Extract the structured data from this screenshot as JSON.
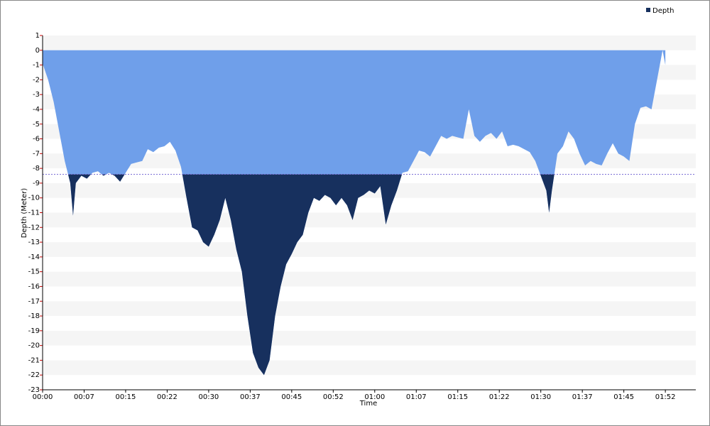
{
  "chart_data": {
    "type": "area",
    "ylabel": "Depth (Meter)",
    "xlabel": "Time",
    "series": [
      {
        "name": "Depth",
        "color": "#6f9fea",
        "deep_color": "#17305e",
        "x": [
          0,
          1,
          2,
          3,
          4,
          5,
          5.5,
          6,
          7,
          8,
          9,
          10,
          11,
          12,
          13,
          14,
          15,
          16,
          17,
          18,
          19,
          20,
          21,
          22,
          23,
          24,
          25,
          26,
          27,
          28,
          29,
          30,
          31,
          32,
          33,
          34,
          35,
          36,
          37,
          38,
          39,
          40,
          41,
          42,
          43,
          44,
          45,
          46,
          47,
          48,
          49,
          50,
          51,
          52,
          53,
          54,
          55,
          56,
          57,
          58,
          59,
          60,
          61,
          62,
          63,
          64,
          65,
          66,
          67,
          68,
          69,
          70,
          71,
          72,
          73,
          74,
          75,
          76,
          77,
          78,
          79,
          80,
          81,
          82,
          83,
          84,
          85,
          86,
          87,
          88,
          89,
          90,
          91,
          91.5,
          92,
          93,
          94,
          95,
          96,
          97,
          98,
          99,
          100,
          101,
          102,
          103,
          104,
          105,
          106,
          107,
          108,
          109,
          110,
          111,
          112,
          112.5
        ],
        "values": [
          -0.9,
          -2,
          -3.5,
          -5.5,
          -7.5,
          -9,
          -11.2,
          -9,
          -8.5,
          -8.7,
          -8.3,
          -8.2,
          -8.5,
          -8.3,
          -8.5,
          -8.9,
          -8.3,
          -7.7,
          -7.6,
          -7.5,
          -6.7,
          -6.9,
          -6.6,
          -6.5,
          -6.2,
          -6.8,
          -7.9,
          -10,
          -12,
          -12.2,
          -13,
          -13.3,
          -12.5,
          -11.5,
          -10,
          -11.5,
          -13.5,
          -15,
          -18,
          -20.5,
          -21.5,
          -22,
          -21,
          -18,
          -16,
          -14.5,
          -13.8,
          -13,
          -12.5,
          -11,
          -10,
          -10.2,
          -9.8,
          -10,
          -10.5,
          -10,
          -10.5,
          -11.5,
          -10,
          -9.8,
          -9.5,
          -9.7,
          -9.2,
          -11.8,
          -10.5,
          -9.5,
          -8.3,
          -8.2,
          -7.5,
          -6.8,
          -6.9,
          -7.2,
          -6.5,
          -5.8,
          -6,
          -5.8,
          -5.9,
          -6,
          -4,
          -5.8,
          -6.2,
          -5.8,
          -5.6,
          -6,
          -5.5,
          -6.5,
          -6.4,
          -6.5,
          -6.7,
          -6.9,
          -7.5,
          -8.5,
          -9.5,
          -11,
          -9.5,
          -7,
          -6.5,
          -5.5,
          -6,
          -7,
          -7.8,
          -7.5,
          -7.7,
          -7.8,
          -7,
          -6.3,
          -7,
          -7.2,
          -7.5,
          -5,
          -3.9,
          -3.8,
          -4,
          -2,
          0,
          -1
        ]
      }
    ],
    "threshold": -8.4,
    "threshold_color": "#7b6fd6",
    "xlim": [
      0,
      118
    ],
    "ylim": [
      -23,
      1
    ],
    "xticks": [
      {
        "value": 0,
        "label": "00:00"
      },
      {
        "value": 7.5,
        "label": "00:07"
      },
      {
        "value": 15,
        "label": "00:15"
      },
      {
        "value": 22.5,
        "label": "00:22"
      },
      {
        "value": 30,
        "label": "00:30"
      },
      {
        "value": 37.5,
        "label": "00:37"
      },
      {
        "value": 45,
        "label": "00:45"
      },
      {
        "value": 52.5,
        "label": "00:52"
      },
      {
        "value": 60,
        "label": "01:00"
      },
      {
        "value": 67.5,
        "label": "01:07"
      },
      {
        "value": 75,
        "label": "01:15"
      },
      {
        "value": 82.5,
        "label": "01:22"
      },
      {
        "value": 90,
        "label": "01:30"
      },
      {
        "value": 97.5,
        "label": "01:37"
      },
      {
        "value": 105,
        "label": "01:45"
      },
      {
        "value": 112.5,
        "label": "01:52"
      }
    ],
    "yticks": [
      -23,
      -22,
      -21,
      -20,
      -19,
      -18,
      -17,
      -16,
      -15,
      -14,
      -13,
      -12,
      -11,
      -10,
      -9,
      -8,
      -7,
      -6,
      -5,
      -4,
      -3,
      -2,
      -1,
      0,
      1
    ],
    "grid": true,
    "legend": "top-right"
  }
}
